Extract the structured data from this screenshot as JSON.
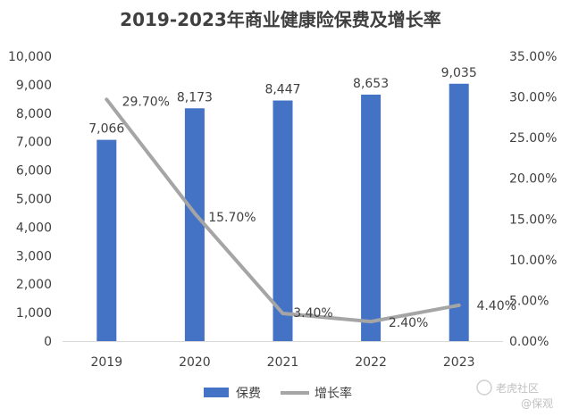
{
  "chart_data": {
    "type": "bar",
    "title": "2019-2023年商业健康险保费及增长率",
    "categories": [
      "2019",
      "2020",
      "2021",
      "2022",
      "2023"
    ],
    "series": [
      {
        "name": "保费",
        "type": "bar",
        "axis": "left",
        "values": [
          7066,
          8173,
          8447,
          8653,
          9035
        ],
        "labels": [
          "7,066",
          "8,173",
          "8,447",
          "8,653",
          "9,035"
        ],
        "color": "#4472C4"
      },
      {
        "name": "增长率",
        "type": "line",
        "axis": "right",
        "values": [
          29.7,
          15.7,
          3.4,
          2.4,
          4.4
        ],
        "labels": [
          "29.70%",
          "15.70%",
          "3.40%",
          "2.40%",
          "4.40%"
        ],
        "color": "#A5A5A5"
      }
    ],
    "y_left": {
      "ylim": [
        0,
        10000
      ],
      "ticks": [
        "0",
        "1,000",
        "2,000",
        "3,000",
        "4,000",
        "5,000",
        "6,000",
        "7,000",
        "8,000",
        "9,000",
        "10,000"
      ]
    },
    "y_right": {
      "ylim": [
        0,
        35
      ],
      "ticks": [
        "0.00%",
        "5.00%",
        "10.00%",
        "15.00%",
        "20.00%",
        "25.00%",
        "30.00%",
        "35.00%"
      ]
    },
    "grid": false,
    "legend": "bottom"
  },
  "watermark": {
    "line1": "老虎社区",
    "line2": "@保观"
  }
}
